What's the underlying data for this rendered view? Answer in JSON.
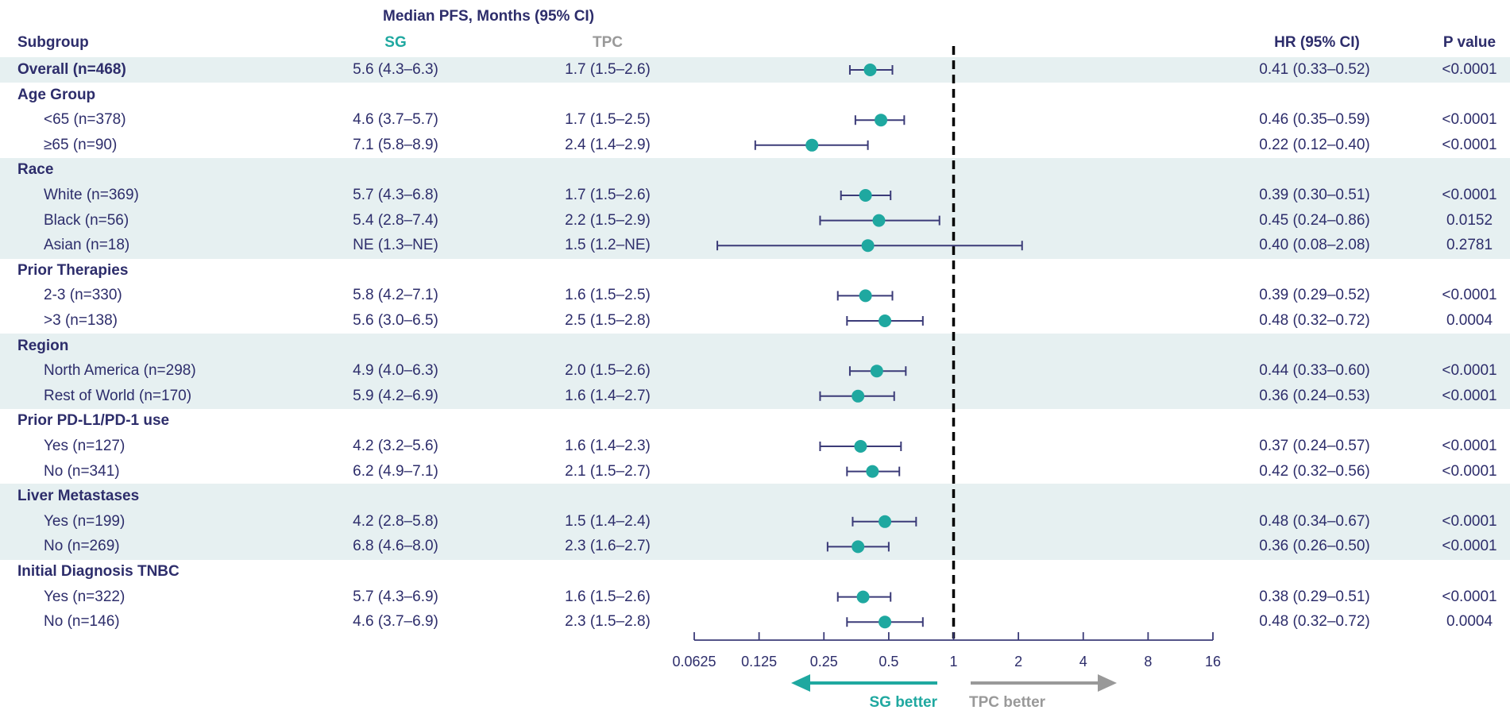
{
  "header": {
    "median_title": "Median PFS, Months (95% CI)",
    "subgroup": "Subgroup",
    "sg": "SG",
    "tpc": "TPC",
    "hr": "HR (95% CI)",
    "pvalue": "P value"
  },
  "colors": {
    "text": "#2d2d6b",
    "sg": "#1fa8a0",
    "tpc": "#999999",
    "band": "#e6f0f1",
    "ci_line": "#3b3b78"
  },
  "rows": [
    {
      "type": "data",
      "level": 0,
      "band": true,
      "label": "Overall (n=468)",
      "sg": "5.6 (4.3–6.3)",
      "tpc": "1.7 (1.5–2.6)",
      "hr_text": "0.41 (0.33–0.52)",
      "p": "<0.0001"
    },
    {
      "type": "group",
      "band": false,
      "label": "Age Group"
    },
    {
      "type": "data",
      "level": 1,
      "band": false,
      "label": "<65 (n=378)",
      "sg": "4.6 (3.7–5.7)",
      "tpc": "1.7 (1.5–2.5)",
      "hr_text": "0.46 (0.35–0.59)",
      "p": "<0.0001"
    },
    {
      "type": "data",
      "level": 1,
      "band": false,
      "label": "≥65 (n=90)",
      "sg": "7.1 (5.8–8.9)",
      "tpc": "2.4 (1.4–2.9)",
      "hr_text": "0.22 (0.12–0.40)",
      "p": "<0.0001"
    },
    {
      "type": "group",
      "band": true,
      "label": "Race"
    },
    {
      "type": "data",
      "level": 1,
      "band": true,
      "label": "White (n=369)",
      "sg": "5.7 (4.3–6.8)",
      "tpc": "1.7 (1.5–2.6)",
      "hr_text": "0.39 (0.30–0.51)",
      "p": "<0.0001"
    },
    {
      "type": "data",
      "level": 1,
      "band": true,
      "label": "Black (n=56)",
      "sg": "5.4 (2.8–7.4)",
      "tpc": "2.2 (1.5–2.9)",
      "hr_text": "0.45 (0.24–0.86)",
      "p": "0.0152"
    },
    {
      "type": "data",
      "level": 1,
      "band": true,
      "label": "Asian (n=18)",
      "sg": "NE (1.3–NE)",
      "tpc": "1.5 (1.2–NE)",
      "hr_text": "0.40 (0.08–2.08)",
      "p": "0.2781"
    },
    {
      "type": "group",
      "band": false,
      "label": "Prior Therapies"
    },
    {
      "type": "data",
      "level": 1,
      "band": false,
      "label": "2-3 (n=330)",
      "sg": "5.8 (4.2–7.1)",
      "tpc": "1.6 (1.5–2.5)",
      "hr_text": "0.39 (0.29–0.52)",
      "p": "<0.0001"
    },
    {
      "type": "data",
      "level": 1,
      "band": false,
      "label": ">3 (n=138)",
      "sg": "5.6 (3.0–6.5)",
      "tpc": "2.5 (1.5–2.8)",
      "hr_text": "0.48 (0.32–0.72)",
      "p": "0.0004"
    },
    {
      "type": "group",
      "band": true,
      "label": "Region"
    },
    {
      "type": "data",
      "level": 1,
      "band": true,
      "label": "North America (n=298)",
      "sg": "4.9 (4.0–6.3)",
      "tpc": "2.0 (1.5–2.6)",
      "hr_text": "0.44 (0.33–0.60)",
      "p": "<0.0001"
    },
    {
      "type": "data",
      "level": 1,
      "band": true,
      "label": "Rest of World (n=170)",
      "sg": "5.9 (4.2–6.9)",
      "tpc": "1.6 (1.4–2.7)",
      "hr_text": "0.36 (0.24–0.53)",
      "p": "<0.0001"
    },
    {
      "type": "group",
      "band": false,
      "label": "Prior PD-L1/PD-1 use"
    },
    {
      "type": "data",
      "level": 1,
      "band": false,
      "label": "Yes (n=127)",
      "sg": "4.2 (3.2–5.6)",
      "tpc": "1.6 (1.4–2.3)",
      "hr_text": "0.37 (0.24–0.57)",
      "p": "<0.0001"
    },
    {
      "type": "data",
      "level": 1,
      "band": false,
      "label": "No (n=341)",
      "sg": "6.2 (4.9–7.1)",
      "tpc": "2.1 (1.5–2.7)",
      "hr_text": "0.42 (0.32–0.56)",
      "p": "<0.0001"
    },
    {
      "type": "group",
      "band": true,
      "label": "Liver Metastases"
    },
    {
      "type": "data",
      "level": 1,
      "band": true,
      "label": "Yes (n=199)",
      "sg": "4.2 (2.8–5.8)",
      "tpc": "1.5 (1.4–2.4)",
      "hr_text": "0.48 (0.34–0.67)",
      "p": "<0.0001"
    },
    {
      "type": "data",
      "level": 1,
      "band": true,
      "label": "No (n=269)",
      "sg": "6.8 (4.6–8.0)",
      "tpc": "2.3 (1.6–2.7)",
      "hr_text": "0.36 (0.26–0.50)",
      "p": "<0.0001"
    },
    {
      "type": "group",
      "band": false,
      "label": "Initial Diagnosis TNBC"
    },
    {
      "type": "data",
      "level": 1,
      "band": false,
      "label": "Yes (n=322)",
      "sg": "5.7 (4.3–6.9)",
      "tpc": "1.6 (1.5–2.6)",
      "hr_text": "0.38 (0.29–0.51)",
      "p": "<0.0001"
    },
    {
      "type": "data",
      "level": 1,
      "band": false,
      "label": "No (n=146)",
      "sg": "4.6 (3.7–6.9)",
      "tpc": "2.3 (1.5–2.8)",
      "hr_text": "0.48 (0.32–0.72)",
      "p": "0.0004"
    }
  ],
  "chart_data": {
    "type": "scatter",
    "x_scale": "log2",
    "xlim": [
      0.0625,
      16
    ],
    "ticks": [
      "0.0625",
      "0.125",
      "0.25",
      "0.5",
      "1",
      "2",
      "4",
      "8",
      "16"
    ],
    "tick_values": [
      0.0625,
      0.125,
      0.25,
      0.5,
      1,
      2,
      4,
      8,
      16
    ],
    "reference_line": 1,
    "left_label": "SG better",
    "right_label": "TPC better",
    "points": [
      {
        "label": "Overall (n=468)",
        "hr": 0.41,
        "lo": 0.33,
        "hi": 0.52
      },
      {
        "label": "<65 (n=378)",
        "hr": 0.46,
        "lo": 0.35,
        "hi": 0.59
      },
      {
        "label": "≥65 (n=90)",
        "hr": 0.22,
        "lo": 0.12,
        "hi": 0.4
      },
      {
        "label": "White (n=369)",
        "hr": 0.39,
        "lo": 0.3,
        "hi": 0.51
      },
      {
        "label": "Black (n=56)",
        "hr": 0.45,
        "lo": 0.24,
        "hi": 0.86
      },
      {
        "label": "Asian (n=18)",
        "hr": 0.4,
        "lo": 0.08,
        "hi": 2.08
      },
      {
        "label": "2-3 (n=330)",
        "hr": 0.39,
        "lo": 0.29,
        "hi": 0.52
      },
      {
        "label": ">3 (n=138)",
        "hr": 0.48,
        "lo": 0.32,
        "hi": 0.72
      },
      {
        "label": "North America (n=298)",
        "hr": 0.44,
        "lo": 0.33,
        "hi": 0.6
      },
      {
        "label": "Rest of World (n=170)",
        "hr": 0.36,
        "lo": 0.24,
        "hi": 0.53
      },
      {
        "label": "Yes (n=127)",
        "hr": 0.37,
        "lo": 0.24,
        "hi": 0.57
      },
      {
        "label": "No (n=341)",
        "hr": 0.42,
        "lo": 0.32,
        "hi": 0.56
      },
      {
        "label": "Yes (n=199)",
        "hr": 0.48,
        "lo": 0.34,
        "hi": 0.67
      },
      {
        "label": "No (n=269)",
        "hr": 0.36,
        "lo": 0.26,
        "hi": 0.5
      },
      {
        "label": "Yes (n=322)",
        "hr": 0.38,
        "lo": 0.29,
        "hi": 0.51
      },
      {
        "label": "No (n=146)",
        "hr": 0.48,
        "lo": 0.32,
        "hi": 0.72
      }
    ]
  }
}
